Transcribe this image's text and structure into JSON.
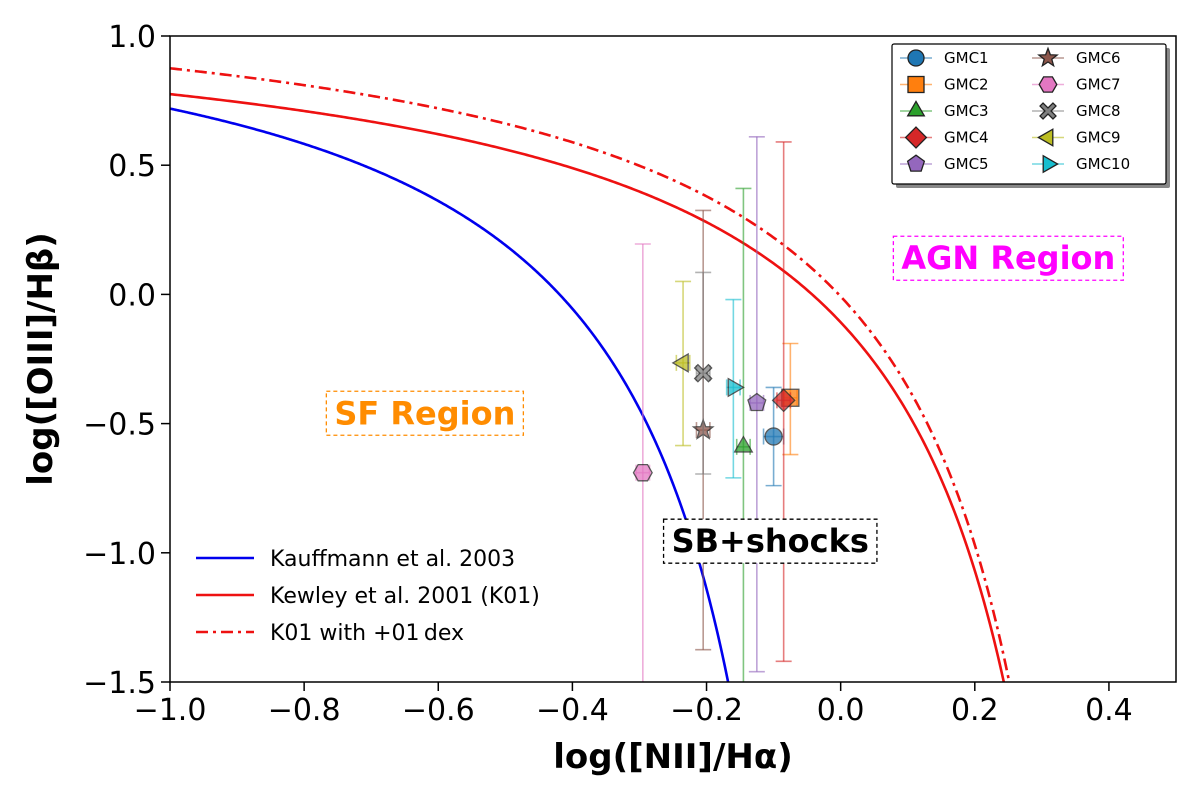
{
  "chart_data": {
    "type": "scatter",
    "title": "",
    "xlabel": "log([NII]/Hα)",
    "ylabel": "log([OIII]/Hβ)",
    "xlim": [
      -1.0,
      0.5
    ],
    "ylim": [
      -1.5,
      1.0
    ],
    "grid": false,
    "x_ticks": [
      -1.0,
      -0.8,
      -0.6,
      -0.4,
      -0.2,
      0.0,
      0.2,
      0.4
    ],
    "x_tick_labels": [
      "−1.0",
      "−0.8",
      "−0.6",
      "−0.4",
      "−0.2",
      "0.0",
      "0.2",
      "0.4"
    ],
    "y_ticks": [
      -1.5,
      -1.0,
      -0.5,
      0.0,
      0.5,
      1.0
    ],
    "y_tick_labels": [
      "−1.5",
      "−1.0",
      "−0.5",
      "0.0",
      "0.5",
      "1.0"
    ],
    "legend_position": "top-right",
    "series": [
      {
        "name": "GMC1",
        "x": -0.1,
        "y": -0.55,
        "x_err": 0.015,
        "y_err_low": 0.19,
        "y_err_high": 0.19,
        "color": "#1f77b4",
        "marker": "circle"
      },
      {
        "name": "GMC2",
        "x": -0.075,
        "y": -0.4,
        "x_err": 0.01,
        "y_err_low": 0.22,
        "y_err_high": 0.21,
        "color": "#ff7f0e",
        "marker": "square"
      },
      {
        "name": "GMC3",
        "x": -0.145,
        "y": -0.59,
        "x_err": 0.01,
        "y_err_low": 1.0,
        "y_err_high": 1.0,
        "color": "#2ca02c",
        "marker": "triangle-up"
      },
      {
        "name": "GMC4",
        "x": -0.085,
        "y": -0.41,
        "x_err": 0.01,
        "y_err_low": 1.01,
        "y_err_high": 1.0,
        "color": "#d62728",
        "marker": "diamond"
      },
      {
        "name": "GMC5",
        "x": -0.125,
        "y": -0.42,
        "x_err": 0.01,
        "y_err_low": 1.04,
        "y_err_high": 1.03,
        "color": "#9467bd",
        "marker": "pentagon"
      },
      {
        "name": "GMC6",
        "x": -0.205,
        "y": -0.525,
        "x_err": 0.01,
        "y_err_low": 0.85,
        "y_err_high": 0.85,
        "color": "#8c564b",
        "marker": "star"
      },
      {
        "name": "GMC7",
        "x": -0.295,
        "y": -0.69,
        "x_err": 0.01,
        "y_err_low": 0.88,
        "y_err_high": 0.885,
        "color": "#e377c2",
        "marker": "hexagon"
      },
      {
        "name": "GMC8",
        "x": -0.205,
        "y": -0.305,
        "x_err": 0.01,
        "y_err_low": 0.39,
        "y_err_high": 0.39,
        "color": "#7f7f7f",
        "marker": "x"
      },
      {
        "name": "GMC9",
        "x": -0.235,
        "y": -0.265,
        "x_err": 0.01,
        "y_err_low": 0.32,
        "y_err_high": 0.315,
        "color": "#bcbd22",
        "marker": "triangle-left"
      },
      {
        "name": "GMC10",
        "x": -0.16,
        "y": -0.36,
        "x_err": 0.01,
        "y_err_low": 0.35,
        "y_err_high": 0.34,
        "color": "#17becf",
        "marker": "triangle-right"
      }
    ],
    "curves": [
      {
        "name": "Kauffmann et al. 2003",
        "color": "#0000ee",
        "style": "solid",
        "a": 0.61,
        "b": 0.05,
        "c": 1.3,
        "shift": 0.0
      },
      {
        "name": "Kewley et al. 2001 (K01)",
        "color": "#ee1111",
        "style": "solid",
        "a": 0.61,
        "b": 0.47,
        "c": 1.19,
        "shift": 0.0
      },
      {
        "name": "K01 with +01 dex",
        "color": "#ee1111",
        "style": "dashdot",
        "a": 0.61,
        "b": 0.47,
        "c": 1.19,
        "shift": 0.1
      }
    ],
    "annotations": [
      {
        "text": "AGN Region",
        "x": 0.25,
        "y": 0.14,
        "color": "#ff00ff",
        "border": "#ff00ff"
      },
      {
        "text": "SF Region",
        "x": -0.62,
        "y": -0.46,
        "color": "#ff8c00",
        "border": "#ff8c00"
      },
      {
        "text": "SB+shocks",
        "x": -0.105,
        "y": -0.955,
        "color": "#000000",
        "border": "#000000"
      }
    ]
  }
}
